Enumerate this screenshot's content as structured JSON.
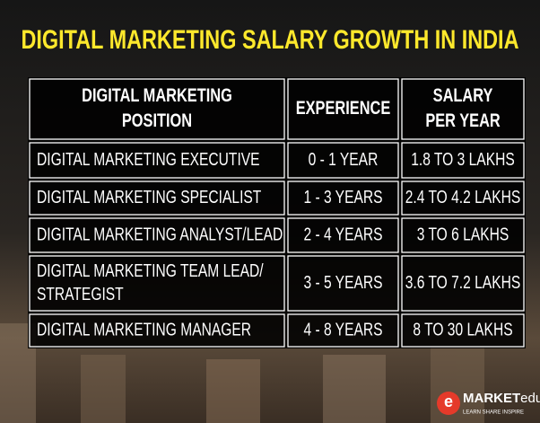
{
  "header": {
    "title": "DIGITAL MARKETING SALARY GROWTH IN INDIA"
  },
  "table": {
    "columns": [
      [
        "DIGITAL MARKETING",
        "POSITION"
      ],
      [
        "EXPERIENCE"
      ],
      [
        "SALARY",
        "PER YEAR"
      ]
    ],
    "rows": [
      [
        [
          "DIGITAL MARKETING EXECUTIVE"
        ],
        "0 - 1 YEAR",
        "1.8 TO 3 LAKHS"
      ],
      [
        [
          "DIGITAL MARKETING SPECIALIST"
        ],
        "1 - 3 YEARS",
        "2.4 TO 4.2 LAKHS"
      ],
      [
        [
          "DIGITAL MARKETING ANALYST/LEAD"
        ],
        "2 - 4 YEARS",
        "3 TO 6 LAKHS"
      ],
      [
        [
          "DIGITAL MARKETING TEAM LEAD/",
          "STRATEGIST"
        ],
        "3 - 5 YEARS",
        "3.6 TO 7.2 LAKHS"
      ],
      [
        [
          "DIGITAL MARKETING MANAGER"
        ],
        "4 - 8 YEARS",
        "8 TO 30 LAKHS"
      ]
    ]
  },
  "logo": {
    "icon": "e",
    "brand": "MARKET",
    "suffix": "edu",
    "tagline": "LEARN SHARE INSPIRE"
  }
}
